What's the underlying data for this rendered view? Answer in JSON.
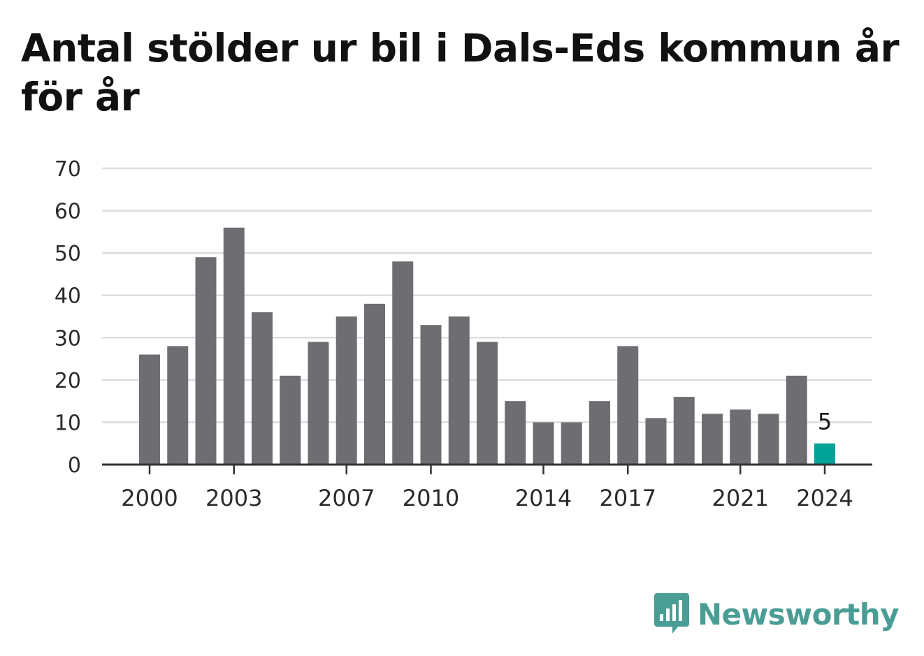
{
  "title": "Antal stölder ur bil i Dals-Eds kommun år för år",
  "brand": {
    "name": "Newsworthy",
    "icon": "newsworthy-logo-icon",
    "color": "#4a9d94"
  },
  "chart_data": {
    "type": "bar",
    "title": "Antal stölder ur bil i Dals-Eds kommun år för år",
    "xlabel": "",
    "ylabel": "",
    "categories": [
      "2000",
      "2001",
      "2002",
      "2003",
      "2004",
      "2005",
      "2006",
      "2007",
      "2008",
      "2009",
      "2010",
      "2011",
      "2012",
      "2013",
      "2014",
      "2015",
      "2016",
      "2017",
      "2018",
      "2019",
      "2020",
      "2021",
      "2022",
      "2023",
      "2024"
    ],
    "values": [
      26,
      28,
      49,
      56,
      36,
      21,
      29,
      35,
      38,
      48,
      33,
      35,
      29,
      15,
      10,
      10,
      15,
      28,
      11,
      16,
      12,
      13,
      12,
      21,
      5
    ],
    "x_tick_labels": [
      "2000",
      "2003",
      "2007",
      "2010",
      "2014",
      "2017",
      "2021",
      "2024"
    ],
    "y_ticks": [
      0,
      10,
      20,
      30,
      40,
      50,
      60,
      70
    ],
    "ylim": [
      0,
      70
    ],
    "grid": "horizontal",
    "bar_color": "#6e6d72",
    "highlight": {
      "category": "2024",
      "color": "#00a396",
      "label": "5"
    }
  }
}
